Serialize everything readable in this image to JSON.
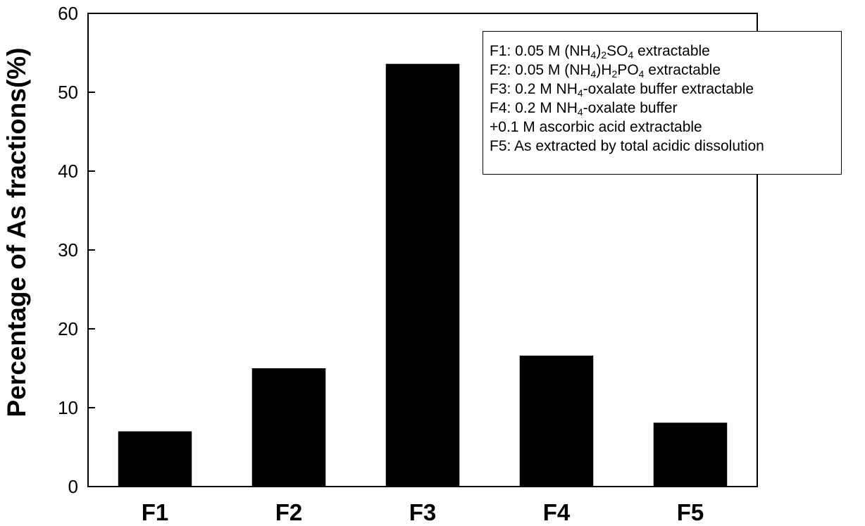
{
  "chart_data": {
    "type": "bar",
    "title": "",
    "xlabel": "",
    "ylabel": "Percentage of As fractions(%)",
    "ylim": [
      0,
      60
    ],
    "yticks": [
      0,
      10,
      20,
      30,
      40,
      50,
      60
    ],
    "categories": [
      "F1",
      "F2",
      "F3",
      "F4",
      "F5"
    ],
    "values": [
      7.0,
      15.0,
      53.6,
      16.6,
      8.1
    ],
    "bar_color": "#000000",
    "grid": false,
    "legend_position": "top-right"
  },
  "legend": {
    "f1": {
      "a": "F1: 0.05 M (NH",
      "s1": "4",
      "b": ")",
      "s2": "2",
      "c": "SO",
      "s3": "4",
      "d": " extractable"
    },
    "f2": {
      "a": "F2: 0.05 M (NH",
      "s1": "4",
      "b": ")H",
      "s2": "2",
      "c": "PO",
      "s3": "4",
      "d": " extractable"
    },
    "f3": {
      "a": "F3: 0.2 M NH",
      "s1": "4",
      "b": "-oxalate buffer extractable"
    },
    "f4": {
      "a": "F4: 0.2 M NH",
      "s1": "4",
      "b": "-oxalate buffer"
    },
    "f4b": "+0.1 M ascorbic acid extractable",
    "f5": "F5: As extracted by total acidic dissolution"
  }
}
